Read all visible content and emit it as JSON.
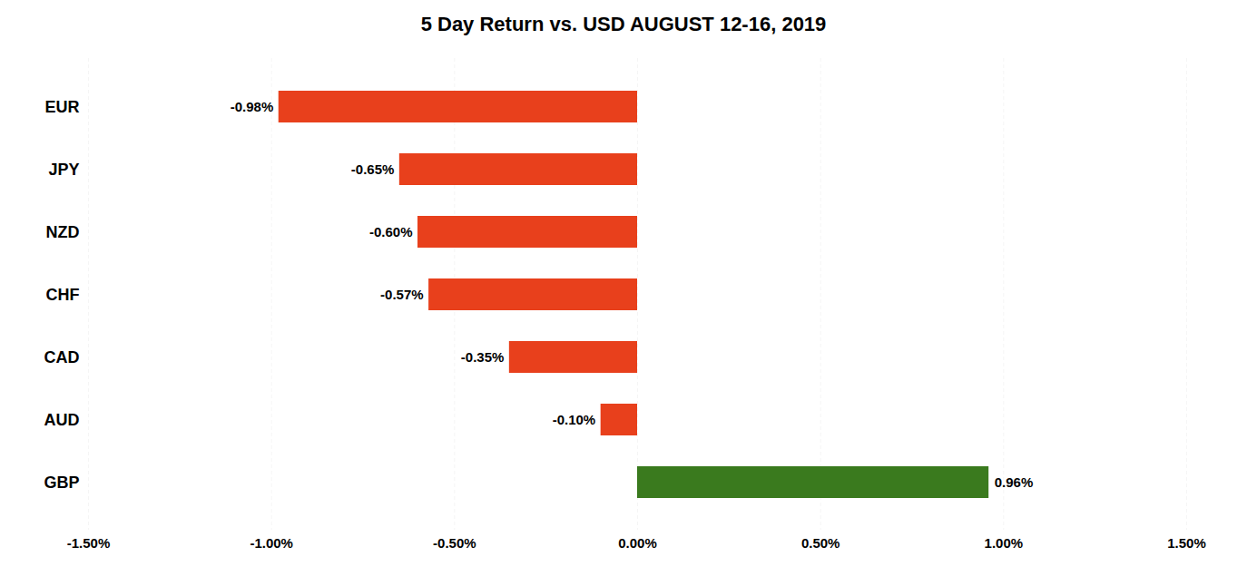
{
  "chart_data": {
    "type": "bar",
    "orientation": "horizontal",
    "title": "5 Day Return vs. USD AUGUST 12-16, 2019",
    "categories": [
      "GBP",
      "AUD",
      "CAD",
      "CHF",
      "NZD",
      "JPY",
      "EUR"
    ],
    "values": [
      0.96,
      -0.1,
      -0.35,
      -0.57,
      -0.6,
      -0.65,
      -0.98
    ],
    "value_labels": [
      "0.96%",
      "-0.10%",
      "-0.35%",
      "-0.57%",
      "-0.60%",
      "-0.65%",
      "-0.98%"
    ],
    "data_labels": true,
    "colors": [
      "#3a7a1e",
      "#e8401c",
      "#e8401c",
      "#e8401c",
      "#e8401c",
      "#e8401c",
      "#e8401c"
    ],
    "xlim": [
      -1.5,
      1.5
    ],
    "xticks": [
      {
        "value": -1.5,
        "label": "-1.50%"
      },
      {
        "value": -1.0,
        "label": "-1.00%"
      },
      {
        "value": -0.5,
        "label": "-0.50%"
      },
      {
        "value": 0.0,
        "label": "0.00%"
      },
      {
        "value": 0.5,
        "label": "0.50%"
      },
      {
        "value": 1.0,
        "label": "1.00%"
      },
      {
        "value": 1.5,
        "label": "1.50%"
      }
    ],
    "grid": true
  }
}
